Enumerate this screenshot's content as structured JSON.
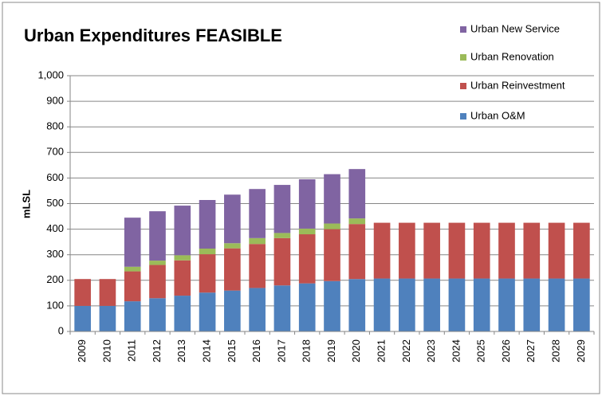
{
  "chart_data": {
    "type": "stacked_bar",
    "title": "Urban Expenditures FEASIBLE",
    "y_label": "mLSL",
    "categories": [
      "2009",
      "2010",
      "2011",
      "2012",
      "2013",
      "2014",
      "2015",
      "2016",
      "2017",
      "2018",
      "2019",
      "2020",
      "2021",
      "2022",
      "2023",
      "2024",
      "2025",
      "2026",
      "2027",
      "2028",
      "2029"
    ],
    "series": [
      {
        "name": "Urban O&M",
        "color": "#4f81bd",
        "values": [
          100,
          100,
          118,
          130,
          140,
          152,
          160,
          170,
          180,
          188,
          197,
          205,
          207,
          207,
          207,
          207,
          207,
          207,
          207,
          207,
          207
        ]
      },
      {
        "name": "Urban Reinvestment",
        "color": "#c0504d",
        "values": [
          105,
          105,
          117,
          130,
          138,
          150,
          165,
          172,
          185,
          192,
          203,
          215,
          218,
          218,
          218,
          218,
          218,
          218,
          218,
          218,
          218
        ]
      },
      {
        "name": "Urban Renovation",
        "color": "#9bbb59",
        "values": [
          0,
          0,
          18,
          17,
          20,
          22,
          20,
          23,
          20,
          22,
          22,
          22,
          0,
          0,
          0,
          0,
          0,
          0,
          0,
          0,
          0
        ]
      },
      {
        "name": "Urban New Service",
        "color": "#8064a2",
        "values": [
          0,
          0,
          192,
          193,
          194,
          190,
          190,
          192,
          188,
          193,
          193,
          193,
          0,
          0,
          0,
          0,
          0,
          0,
          0,
          0,
          0
        ]
      }
    ],
    "ylim": [
      0,
      1000
    ],
    "yticks": [
      0,
      100,
      200,
      300,
      400,
      500,
      600,
      700,
      800,
      900,
      {
        "value": 1000,
        "label": "1,000"
      }
    ],
    "grid": true
  }
}
